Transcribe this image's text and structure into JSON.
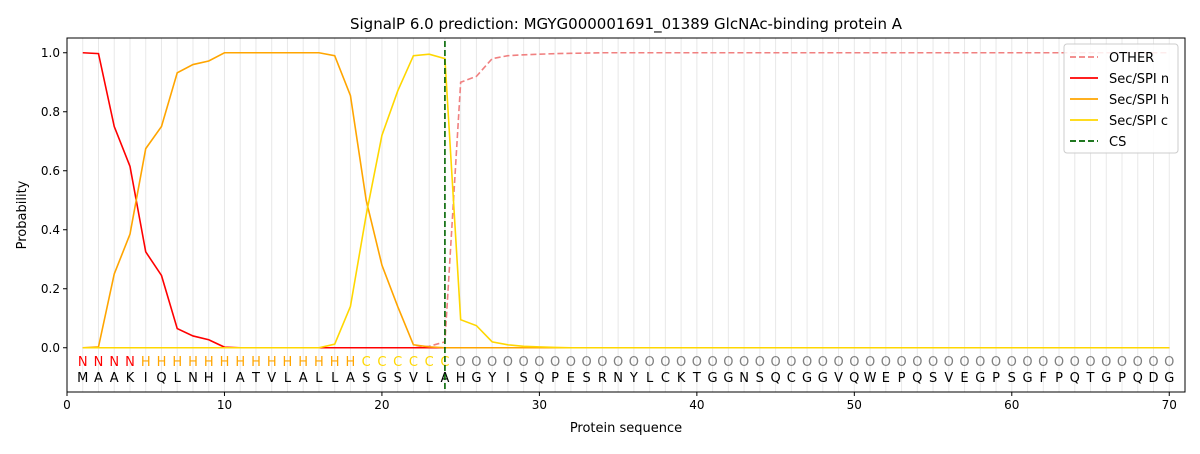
{
  "chart_data": {
    "type": "line",
    "title": "SignalP 6.0 prediction: MGYG000001691_01389 GlcNAc-binding protein A",
    "xlabel": "Protein sequence",
    "ylabel": "Probability",
    "xlim": [
      0,
      71
    ],
    "ylim": [
      -0.15,
      1.05
    ],
    "xticks": [
      0,
      10,
      20,
      30,
      40,
      50,
      60,
      70
    ],
    "yticks": [
      "0.0",
      "0.2",
      "0.4",
      "0.6",
      "0.8",
      "1.0"
    ],
    "legend_position": "top-right",
    "sequence": "MAAKIQLNHIATVLALLASGSVLAHGYISQPESRNYLCKTGGNSQCGGVQWEPQSVEGPSGFPQTGPQDG",
    "labels": "NNNNHHHHHHHHHHHHHHCCCCCCOOOOOOOOOOOOOOOOOOOOOOOOOOOOOOOOOOOOOOOOOOOOOO",
    "label_colors": {
      "N": "#ff0000",
      "H": "#ffa500",
      "C": "#ffd700",
      "O": "#808080"
    },
    "cs_position": 24,
    "series": [
      {
        "name": "OTHER",
        "color": "#f08080",
        "dash": true,
        "values": [
          0,
          0,
          0,
          0,
          0,
          0,
          0,
          0,
          0,
          0,
          0,
          0,
          0,
          0,
          0,
          0,
          0,
          0,
          0,
          0,
          0,
          0,
          0.005,
          0.02,
          0.9,
          0.92,
          0.98,
          0.99,
          0.993,
          0.995,
          0.997,
          0.998,
          0.999,
          1,
          1,
          1,
          1,
          1,
          1,
          1,
          1,
          1,
          1,
          1,
          1,
          1,
          1,
          1,
          1,
          1,
          1,
          1,
          1,
          1,
          1,
          1,
          1,
          1,
          1,
          1,
          1,
          1,
          1,
          1,
          1,
          1,
          1,
          1,
          1,
          1
        ]
      },
      {
        "name": "Sec/SPI n",
        "color": "#ff0000",
        "dash": false,
        "values": [
          1.0,
          0.997,
          0.75,
          0.615,
          0.325,
          0.245,
          0.065,
          0.04,
          0.027,
          0.002,
          0,
          0,
          0,
          0,
          0,
          0,
          0,
          0,
          0,
          0,
          0,
          0,
          0,
          0,
          0,
          0,
          0,
          0,
          0,
          0,
          0,
          0,
          0,
          0,
          0,
          0,
          0,
          0,
          0,
          0,
          0,
          0,
          0,
          0,
          0,
          0,
          0,
          0,
          0,
          0,
          0,
          0,
          0,
          0,
          0,
          0,
          0,
          0,
          0,
          0,
          0,
          0,
          0,
          0,
          0,
          0,
          0,
          0,
          0,
          0
        ]
      },
      {
        "name": "Sec/SPI h",
        "color": "#ffa500",
        "dash": false,
        "values": [
          0,
          0.003,
          0.25,
          0.385,
          0.675,
          0.75,
          0.932,
          0.96,
          0.972,
          1.0,
          1.0,
          1.0,
          1.0,
          1.0,
          1.0,
          1.0,
          0.99,
          0.855,
          0.5,
          0.28,
          0.14,
          0.01,
          0.003,
          0,
          0,
          0,
          0,
          0,
          0,
          0,
          0,
          0,
          0,
          0,
          0,
          0,
          0,
          0,
          0,
          0,
          0,
          0,
          0,
          0,
          0,
          0,
          0,
          0,
          0,
          0,
          0,
          0,
          0,
          0,
          0,
          0,
          0,
          0,
          0,
          0,
          0,
          0,
          0,
          0,
          0,
          0,
          0,
          0,
          0,
          0
        ]
      },
      {
        "name": "Sec/SPI c",
        "color": "#ffd700",
        "dash": false,
        "values": [
          0,
          0,
          0,
          0,
          0,
          0,
          0,
          0,
          0,
          0,
          0,
          0,
          0,
          0,
          0,
          0,
          0.012,
          0.14,
          0.45,
          0.72,
          0.87,
          0.99,
          0.995,
          0.98,
          0.095,
          0.075,
          0.02,
          0.01,
          0.005,
          0.003,
          0.001,
          0,
          0,
          0,
          0,
          0,
          0,
          0,
          0,
          0,
          0,
          0,
          0,
          0,
          0,
          0,
          0,
          0,
          0,
          0,
          0,
          0,
          0,
          0,
          0,
          0,
          0,
          0,
          0,
          0,
          0,
          0,
          0,
          0,
          0,
          0,
          0,
          0,
          0,
          0
        ]
      }
    ],
    "cs_legend": {
      "name": "CS",
      "color": "#006400"
    }
  }
}
